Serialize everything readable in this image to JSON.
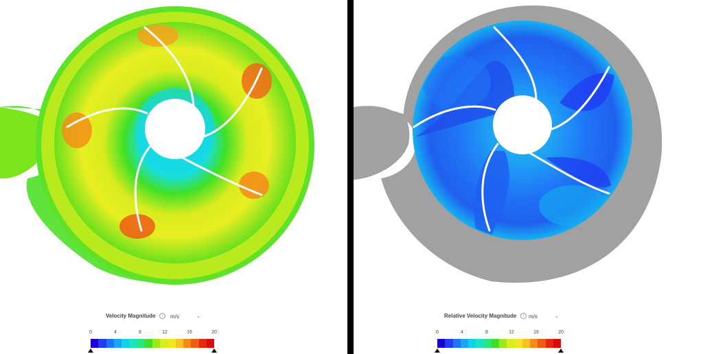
{
  "left_panel": {
    "legend_title": "Velocity Magnitude",
    "unit": "m/s",
    "ticks": [
      "0",
      "4",
      "8",
      "12",
      "16",
      "20"
    ]
  },
  "right_panel": {
    "legend_title": "Relative Velocity Magnitude",
    "unit": "m/s",
    "ticks": [
      "0",
      "4",
      "8",
      "12",
      "16",
      "20"
    ]
  },
  "colormap": [
    "#1a00d9",
    "#1f3cf2",
    "#1f74f5",
    "#16a6f2",
    "#0fd2ea",
    "#16e6bf",
    "#28e67b",
    "#3fe028",
    "#9be81e",
    "#d9ec1e",
    "#f2e61e",
    "#f5c21e",
    "#f58a1a",
    "#ef5a14",
    "#e6280f",
    "#d90a0a"
  ],
  "colors": {
    "volute_gray": "#a1a1a1",
    "blade": "#ffffff",
    "divider": "#000000"
  }
}
